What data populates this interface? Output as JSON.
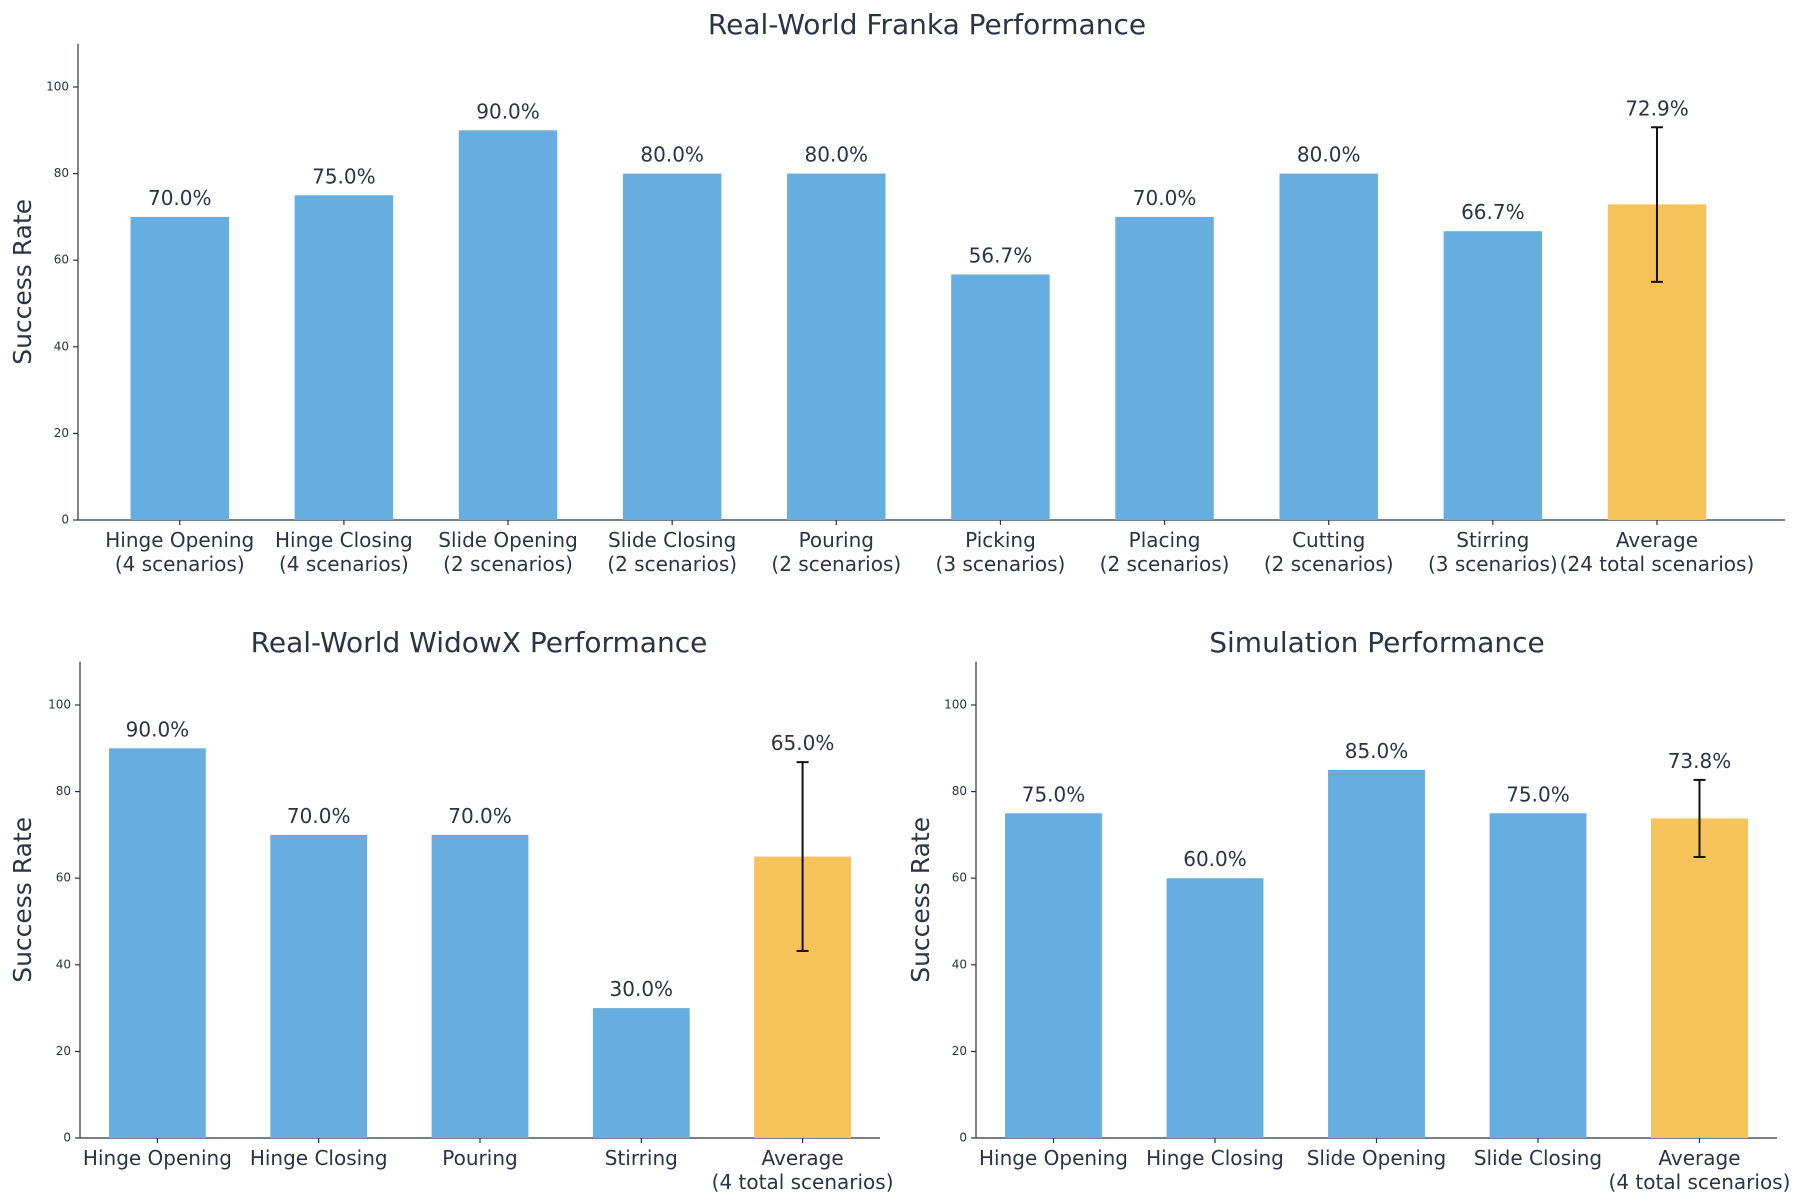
{
  "chart_data": [
    {
      "type": "bar",
      "title": "Real-World Franka Performance",
      "ylabel": "Success Rate",
      "xlabel": "",
      "ylim": [
        0,
        110
      ],
      "yticks": [
        0,
        20,
        40,
        60,
        80,
        100
      ],
      "categories": [
        [
          "Hinge Opening",
          "(4 scenarios)"
        ],
        [
          "Hinge Closing",
          "(4 scenarios)"
        ],
        [
          "Slide Opening",
          "(2 scenarios)"
        ],
        [
          "Slide Closing",
          "(2 scenarios)"
        ],
        [
          "Pouring",
          "(2 scenarios)"
        ],
        [
          "Picking",
          "(3 scenarios)"
        ],
        [
          "Placing",
          "(2 scenarios)"
        ],
        [
          "Cutting",
          "(2 scenarios)"
        ],
        [
          "Stirring",
          "(3 scenarios)"
        ],
        [
          "Average",
          "(24 total scenarios)"
        ]
      ],
      "values": [
        70.0,
        75.0,
        90.0,
        80.0,
        80.0,
        56.7,
        70.0,
        80.0,
        66.7,
        72.9
      ],
      "value_labels": [
        "70.0%",
        "75.0%",
        "90.0%",
        "80.0%",
        "80.0%",
        "56.7%",
        "70.0%",
        "80.0%",
        "66.7%",
        "72.9%"
      ],
      "error_bars": [
        null,
        null,
        null,
        null,
        null,
        null,
        null,
        null,
        null,
        [
          55.0,
          90.7
        ]
      ],
      "colors": [
        "#67aee0",
        "#67aee0",
        "#67aee0",
        "#67aee0",
        "#67aee0",
        "#67aee0",
        "#67aee0",
        "#67aee0",
        "#67aee0",
        "#f5c35a"
      ],
      "grid": false,
      "legend": "none"
    },
    {
      "type": "bar",
      "title": "Real-World WidowX Performance",
      "ylabel": "Success Rate",
      "xlabel": "",
      "ylim": [
        0,
        110
      ],
      "yticks": [
        0,
        20,
        40,
        60,
        80,
        100
      ],
      "categories": [
        [
          "Hinge Opening"
        ],
        [
          "Hinge Closing"
        ],
        [
          "Pouring"
        ],
        [
          "Stirring"
        ],
        [
          "Average",
          "(4 total scenarios)"
        ]
      ],
      "values": [
        90.0,
        70.0,
        70.0,
        30.0,
        65.0
      ],
      "value_labels": [
        "90.0%",
        "70.0%",
        "70.0%",
        "30.0%",
        "65.0%"
      ],
      "error_bars": [
        null,
        null,
        null,
        null,
        [
          43.2,
          86.8
        ]
      ],
      "colors": [
        "#67aee0",
        "#67aee0",
        "#67aee0",
        "#67aee0",
        "#f5c35a"
      ],
      "grid": false,
      "legend": "none"
    },
    {
      "type": "bar",
      "title": "Simulation Performance",
      "ylabel": "Success Rate",
      "xlabel": "",
      "ylim": [
        0,
        110
      ],
      "yticks": [
        0,
        20,
        40,
        60,
        80,
        100
      ],
      "categories": [
        [
          "Hinge Opening"
        ],
        [
          "Hinge Closing"
        ],
        [
          "Slide Opening"
        ],
        [
          "Slide Closing"
        ],
        [
          "Average",
          "(4 total scenarios)"
        ]
      ],
      "values": [
        75.0,
        60.0,
        85.0,
        75.0,
        73.8
      ],
      "value_labels": [
        "75.0%",
        "60.0%",
        "85.0%",
        "75.0%",
        "73.8%"
      ],
      "error_bars": [
        null,
        null,
        null,
        null,
        [
          64.9,
          82.7
        ]
      ],
      "colors": [
        "#67aee0",
        "#67aee0",
        "#67aee0",
        "#67aee0",
        "#f5c35a"
      ],
      "grid": false,
      "legend": "none"
    }
  ]
}
